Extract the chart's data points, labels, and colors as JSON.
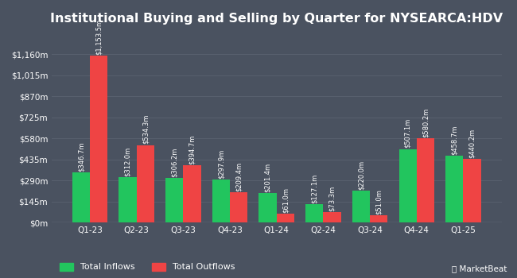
{
  "title": "Institutional Buying and Selling by Quarter for NYSEARCA:HDV",
  "quarters": [
    "Q1-23",
    "Q2-23",
    "Q3-23",
    "Q4-23",
    "Q1-24",
    "Q2-24",
    "Q3-24",
    "Q4-24",
    "Q1-25"
  ],
  "inflows": [
    346.7,
    312.0,
    306.2,
    297.9,
    201.4,
    127.1,
    220.0,
    507.1,
    458.7
  ],
  "outflows": [
    1153.5,
    534.3,
    394.7,
    209.4,
    61.0,
    73.3,
    51.0,
    580.2,
    440.2
  ],
  "inflow_labels": [
    "$346.7m",
    "$312.0m",
    "$306.2m",
    "$297.9m",
    "$201.4m",
    "$127.1m",
    "$220.0m",
    "$507.1m",
    "$458.7m"
  ],
  "outflow_labels": [
    "$1,153.5m",
    "$534.3m",
    "$394.7m",
    "$209.4m",
    "$61.0m",
    "$73.3m",
    "$51.0m",
    "$580.2m",
    "$440.2m"
  ],
  "inflow_color": "#22c55e",
  "outflow_color": "#ef4444",
  "background_color": "#4a5260",
  "text_color": "#ffffff",
  "grid_color": "#5a6270",
  "yticks": [
    0,
    145,
    290,
    435,
    580,
    725,
    870,
    1015,
    1160
  ],
  "ytick_labels": [
    "$0m",
    "$145m",
    "$290m",
    "$435m",
    "$580m",
    "$725m",
    "$870m",
    "$1,015m",
    "$1,160m"
  ],
  "ylim": [
    0,
    1305
  ],
  "legend_labels": [
    "Total Inflows",
    "Total Outflows"
  ],
  "bar_width": 0.38,
  "title_fontsize": 11.5,
  "label_fontsize": 6.0,
  "tick_fontsize": 7.5,
  "legend_fontsize": 8
}
